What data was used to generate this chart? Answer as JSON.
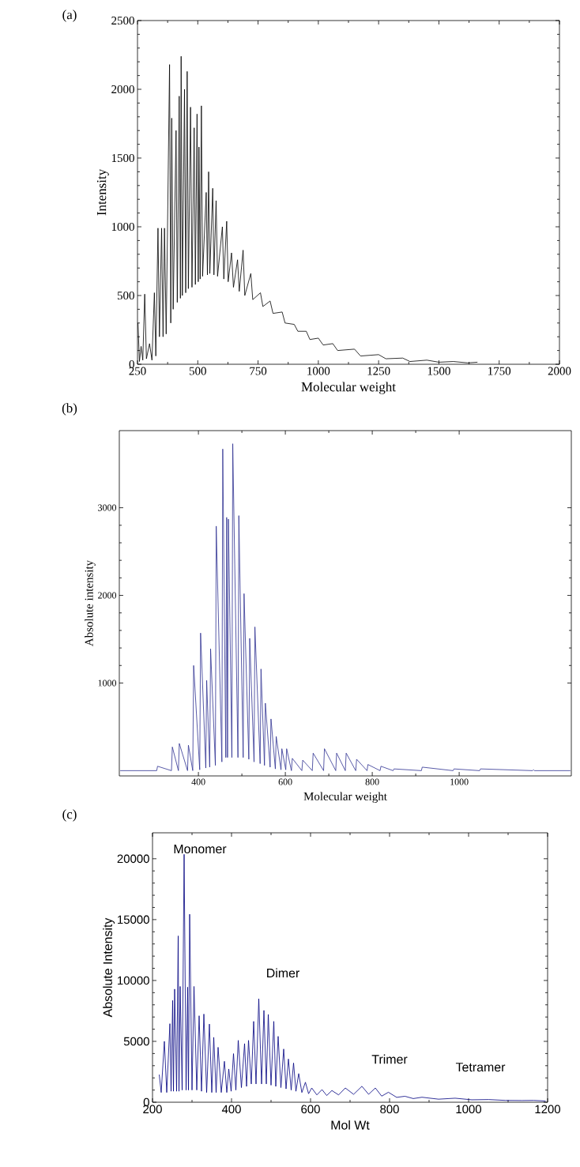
{
  "chart_data": [
    {
      "type": "line",
      "title": "(a)",
      "xlabel": "Molecular weight",
      "ylabel": "Intensity",
      "xlim": [
        250,
        2000
      ],
      "ylim": [
        0,
        2500
      ],
      "xticks": [
        250,
        500,
        750,
        1000,
        1250,
        1500,
        1750,
        2000
      ],
      "yticks": [
        0,
        500,
        1000,
        1500,
        2000,
        2500
      ],
      "series": [
        {
          "color": "#000000",
          "x": [
            252,
            258,
            265,
            272,
            280,
            287,
            300,
            310,
            320,
            326,
            335,
            341,
            350,
            356,
            362,
            369,
            383,
            388,
            392,
            398,
            410,
            415,
            423,
            428,
            431,
            436,
            445,
            450,
            456,
            461,
            470,
            476,
            485,
            490,
            497,
            502,
            505,
            510,
            515,
            520,
            535,
            540,
            545,
            550,
            562,
            567,
            576,
            582,
            602,
            608,
            620,
            626,
            640,
            648,
            665,
            672,
            688,
            695,
            720,
            728,
            760,
            770,
            800,
            812,
            850,
            862,
            900,
            915,
            950,
            965,
            1000,
            1020,
            1060,
            1080,
            1150,
            1175,
            1250,
            1280,
            1350,
            1380,
            1450,
            1500,
            1560,
            1620,
            1660
          ],
          "values": [
            300,
            20,
            130,
            30,
            510,
            40,
            150,
            30,
            520,
            60,
            990,
            200,
            990,
            200,
            990,
            220,
            2180,
            300,
            1790,
            400,
            1700,
            450,
            1950,
            480,
            2240,
            500,
            2000,
            520,
            2130,
            550,
            1870,
            560,
            1720,
            580,
            1820,
            600,
            1580,
            620,
            1880,
            640,
            1250,
            650,
            1400,
            660,
            1280,
            650,
            1190,
            640,
            1000,
            620,
            1040,
            600,
            810,
            560,
            760,
            530,
            830,
            500,
            660,
            470,
            520,
            420,
            460,
            370,
            380,
            300,
            290,
            240,
            240,
            180,
            190,
            140,
            150,
            100,
            110,
            60,
            70,
            40,
            45,
            20,
            30,
            15,
            20,
            10,
            15
          ]
        }
      ]
    },
    {
      "type": "line",
      "title": "(b)",
      "xlabel": "Molecular weight",
      "ylabel": "Absolute intensity",
      "xlim": [
        218,
        1258
      ],
      "ylim": [
        -60,
        3880
      ],
      "xticks": [
        400,
        600,
        800,
        1000
      ],
      "yticks": [
        1000,
        2000,
        3000
      ],
      "series": [
        {
          "color": "#2e3192",
          "x": [
            220,
            304,
            306,
            338,
            340,
            354,
            356,
            375,
            377,
            387,
            389,
            403,
            405,
            417,
            419,
            426,
            428,
            439,
            441,
            454,
            456,
            463,
            465,
            467,
            469,
            477,
            479,
            491,
            493,
            503,
            505,
            516,
            518,
            528,
            530,
            542,
            544,
            552,
            554,
            565,
            567,
            577,
            579,
            590,
            592,
            601,
            603,
            614,
            616,
            638,
            640,
            662,
            664,
            688,
            690,
            716,
            718,
            738,
            740,
            762,
            764,
            788,
            790,
            818,
            820,
            848,
            850,
            913,
            915,
            986,
            988,
            1047,
            1049,
            1169,
            1171,
            1173,
            1256
          ],
          "values": [
            0,
            0,
            50,
            0,
            270,
            0,
            310,
            0,
            290,
            0,
            1200,
            10,
            1570,
            30,
            1030,
            40,
            1390,
            60,
            2790,
            100,
            3670,
            150,
            2890,
            150,
            2870,
            150,
            3730,
            150,
            2910,
            150,
            2020,
            130,
            1510,
            100,
            1640,
            80,
            1160,
            60,
            770,
            40,
            590,
            20,
            390,
            10,
            250,
            10,
            250,
            0,
            140,
            0,
            120,
            0,
            200,
            0,
            250,
            0,
            200,
            0,
            200,
            0,
            130,
            0,
            70,
            0,
            50,
            0,
            20,
            0,
            40,
            0,
            20,
            0,
            20,
            0,
            10,
            0,
            0
          ]
        }
      ]
    },
    {
      "type": "line",
      "title": "(c)",
      "xlabel": "Mol Wt",
      "ylabel": "Absolute Intensity",
      "xlim": [
        200,
        1200
      ],
      "ylim": [
        0,
        22130
      ],
      "xticks": [
        200,
        400,
        600,
        800,
        1000,
        1200
      ],
      "yticks": [
        0,
        5000,
        10000,
        15000,
        20000
      ],
      "annotations": [
        "Monomer",
        "Dimer",
        "Trimer",
        "Tetramer"
      ],
      "series": [
        {
          "color": "#000080",
          "x": [
            217,
            222,
            230,
            236,
            244,
            247,
            251,
            253,
            256,
            261,
            265,
            267,
            270,
            275,
            280,
            285,
            289,
            291,
            294,
            300,
            305,
            312,
            318,
            324,
            330,
            337,
            344,
            350,
            355,
            361,
            366,
            374,
            382,
            388,
            393,
            399,
            405,
            411,
            417,
            425,
            433,
            438,
            443,
            450,
            456,
            462,
            469,
            476,
            482,
            488,
            493,
            500,
            507,
            512,
            518,
            525,
            532,
            538,
            544,
            551,
            557,
            563,
            570,
            578,
            587,
            595,
            603,
            616,
            629,
            641,
            654,
            671,
            688,
            709,
            730,
            747,
            764,
            780,
            797,
            818,
            839,
            860,
            882,
            924,
            966,
            1008,
            1051,
            1093,
            1135,
            1165,
            1195
          ],
          "values": [
            2270,
            800,
            5000,
            800,
            6450,
            900,
            8360,
            900,
            9290,
            900,
            13660,
            900,
            9510,
            1000,
            20360,
            1000,
            9450,
            1000,
            15440,
            1000,
            9510,
            1000,
            7100,
            900,
            7240,
            800,
            6420,
            800,
            5330,
            800,
            4510,
            800,
            3360,
            800,
            2730,
            900,
            3990,
            1000,
            5080,
            1200,
            4810,
            1300,
            5080,
            1500,
            6640,
            1500,
            8500,
            1500,
            7540,
            1500,
            7210,
            1400,
            6640,
            1300,
            5410,
            1200,
            4370,
            1100,
            3550,
            1000,
            3220,
            900,
            2350,
            800,
            1640,
            700,
            1170,
            600,
            1040,
            550,
            960,
            600,
            1170,
            650,
            1310,
            650,
            1170,
            500,
            820,
            400,
            490,
            300,
            410,
            250,
            330,
            200,
            220,
            150,
            140,
            150,
            100
          ]
        }
      ]
    }
  ]
}
